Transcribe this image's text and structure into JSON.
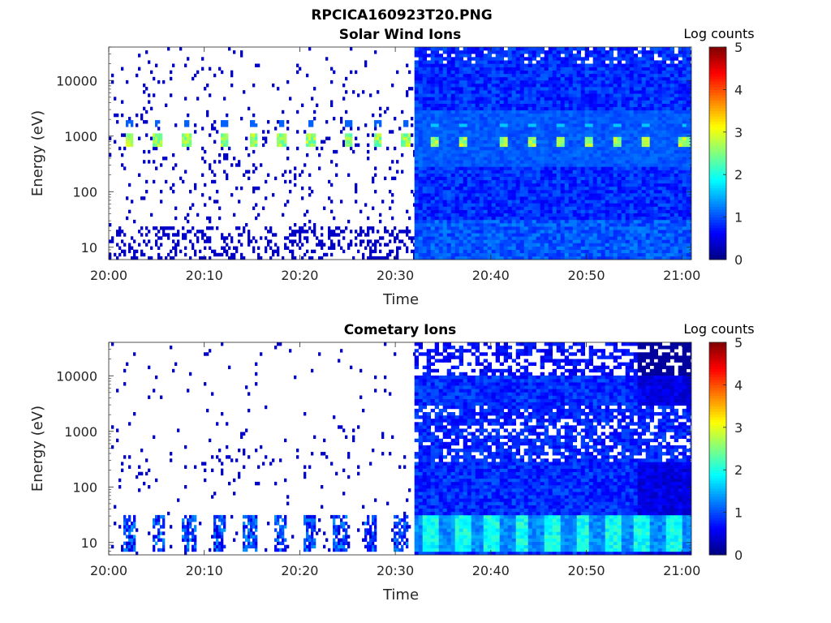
{
  "figure_title": "RPCICA160923T20.PNG",
  "chart_data": [
    {
      "type": "heatmap",
      "title": "Solar Wind Ions",
      "xlabel": "Time",
      "ylabel": "Energy (eV)",
      "yscale": "log",
      "xlim": [
        "20:00",
        "21:01"
      ],
      "ylim": [
        6,
        40000
      ],
      "xticks": [
        "20:00",
        "20:10",
        "20:20",
        "20:30",
        "20:40",
        "20:50",
        "21:00"
      ],
      "yticks": [
        "10",
        "100",
        "1000",
        "10000"
      ],
      "colorbar": {
        "label": "Log counts",
        "range": [
          0,
          5
        ],
        "ticks": [
          "0",
          "1",
          "2",
          "3",
          "4",
          "5"
        ],
        "colormap": "jet"
      },
      "mode_change_time": "20:32",
      "peak_energy_ev": 800,
      "peak_times": [
        "20:02",
        "20:05",
        "20:08",
        "20:12",
        "20:15",
        "20:18",
        "20:21",
        "20:25",
        "20:28",
        "20:31",
        "20:34",
        "20:37",
        "20:41",
        "20:44",
        "20:47",
        "20:50",
        "20:53",
        "20:56",
        "21:00"
      ],
      "grid": false
    },
    {
      "type": "heatmap",
      "title": "Cometary Ions",
      "xlabel": "Time",
      "ylabel": "Energy (eV)",
      "yscale": "log",
      "xlim": [
        "20:00",
        "21:01"
      ],
      "ylim": [
        6,
        40000
      ],
      "xticks": [
        "20:00",
        "20:10",
        "20:20",
        "20:30",
        "20:40",
        "20:50",
        "21:00"
      ],
      "yticks": [
        "10",
        "100",
        "1000",
        "10000"
      ],
      "colorbar": {
        "label": "Log counts",
        "range": [
          0,
          5
        ],
        "ticks": [
          "0",
          "1",
          "2",
          "3",
          "4",
          "5"
        ],
        "colormap": "jet"
      },
      "mode_change_time": "20:32",
      "peak_energy_ev": 800,
      "low_energy_band_ev": [
        8,
        30
      ],
      "grid": false
    }
  ]
}
